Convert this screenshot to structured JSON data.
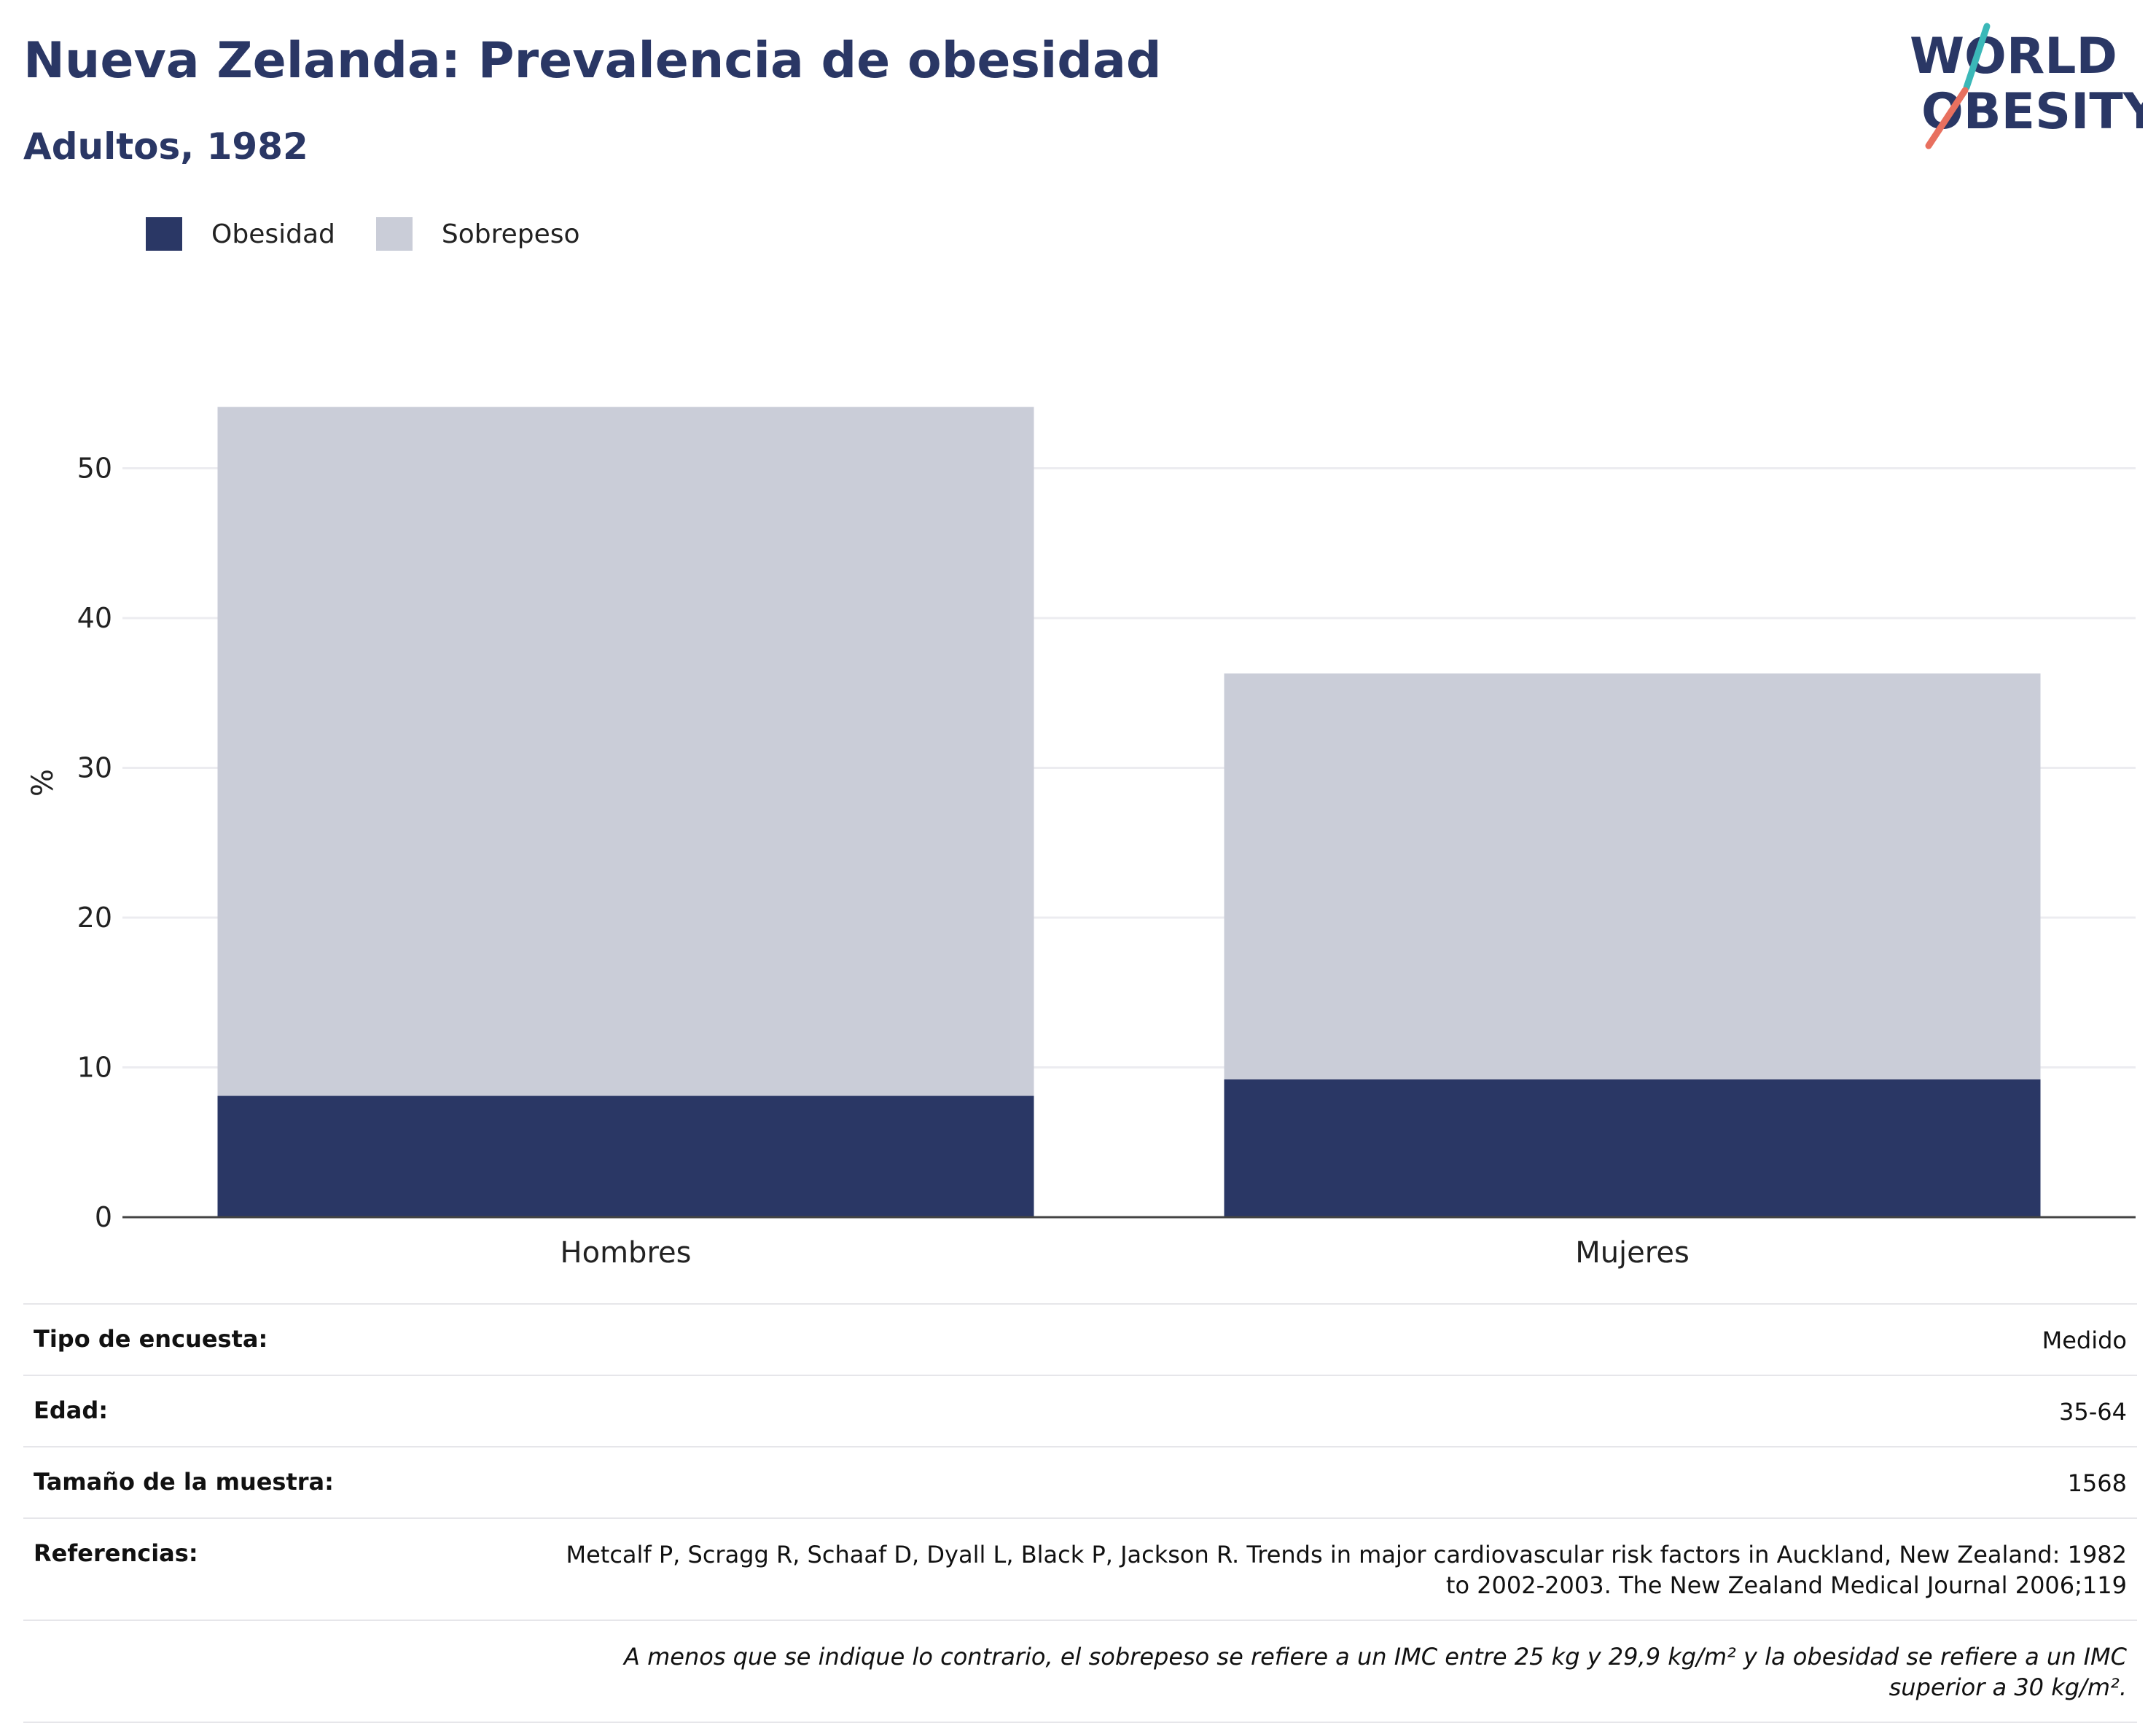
{
  "header": {
    "title": "Nueva Zelanda: Prevalencia de obesidad",
    "subtitle": "Adultos, 1982"
  },
  "logo": {
    "line1": "WORLD",
    "line2": "OBESITY",
    "colors": {
      "text": "#2a3765",
      "slash_teal": "#3bb8b8",
      "slash_red": "#e8705f"
    }
  },
  "legend": {
    "items": [
      {
        "label": "Obesidad",
        "color": "#2a3765"
      },
      {
        "label": "Sobrepeso",
        "color": "#cacdd8"
      }
    ]
  },
  "chart_data": {
    "type": "bar",
    "stacked": true,
    "categories": [
      "Hombres",
      "Mujeres"
    ],
    "series": [
      {
        "name": "Obesidad",
        "values": [
          8.1,
          9.2
        ],
        "color": "#2a3765"
      },
      {
        "name": "Sobrepeso",
        "values": [
          46.0,
          27.1
        ],
        "color": "#cacdd8"
      }
    ],
    "title": "Nueva Zelanda: Prevalencia de obesidad",
    "subtitle": "Adultos, 1982",
    "xlabel": "",
    "ylabel": "%",
    "ylim": [
      0,
      60
    ],
    "yticks": [
      0,
      10,
      20,
      30,
      40,
      50
    ],
    "grid": true,
    "legend_position": "top-left"
  },
  "info": {
    "rows": [
      {
        "key": "Tipo de encuesta:",
        "value": "Medido"
      },
      {
        "key": "Edad:",
        "value": "35-64"
      },
      {
        "key": "Tamaño de la muestra:",
        "value": "1568"
      },
      {
        "key": "Referencias:",
        "value": "Metcalf P, Scragg R, Schaaf D, Dyall L, Black P, Jackson R. Trends in major cardiovascular risk factors in Auckland, New Zealand: 1982 to 2002-2003. The New Zealand Medical Journal 2006;119"
      }
    ],
    "note": "A menos que se indique lo contrario, el sobrepeso se refiere a un IMC entre 25 kg y 29,9 kg/m² y la obesidad se refiere a un IMC superior a 30 kg/m²."
  }
}
